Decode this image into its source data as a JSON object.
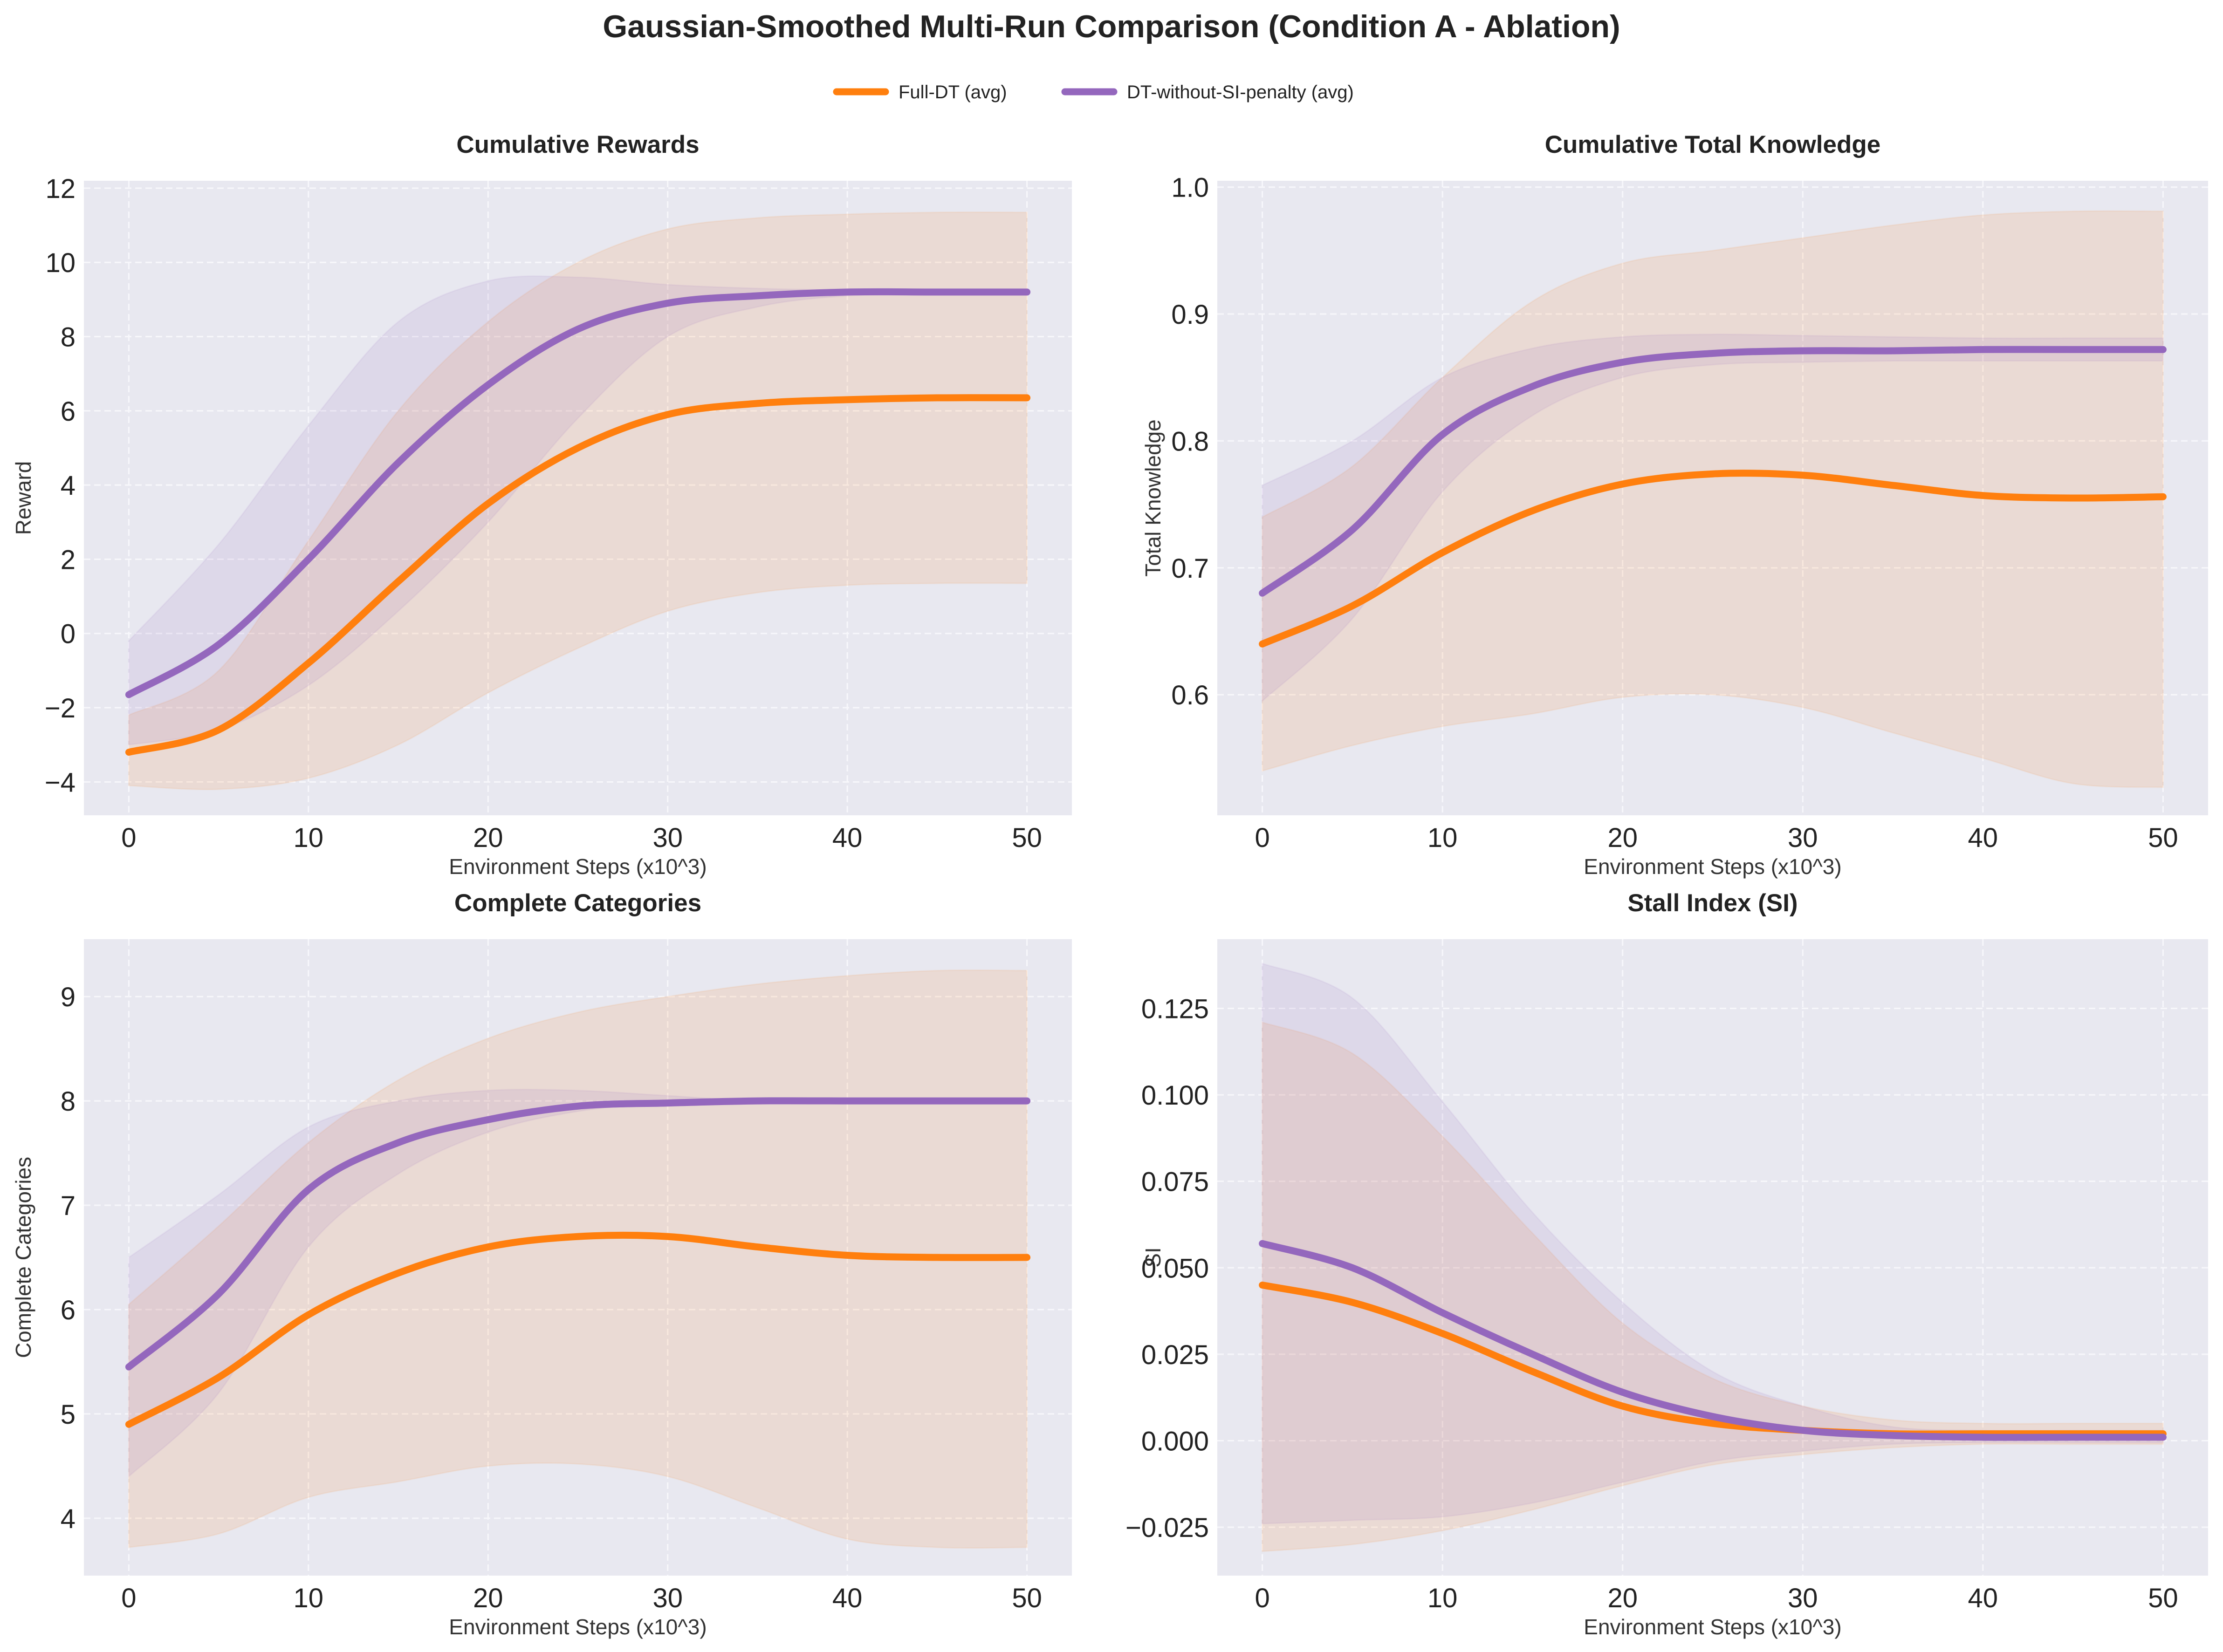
{
  "title": "Gaussian-Smoothed Multi-Run Comparison (Condition A - Ablation)",
  "legend": [
    {
      "label": "Full-DT (avg)",
      "color": "#ff7f0e"
    },
    {
      "label": "DT-without-SI-penalty (avg)",
      "color": "#9467bd"
    }
  ],
  "colors": {
    "panel_bg": "#e8e8f0",
    "grid": "#f7f7fb",
    "full_dt": "#ff7f0e",
    "dt_wo_si": "#9467bd"
  },
  "chart_data": [
    {
      "type": "line",
      "title": "Cumulative Rewards",
      "xlabel": "Environment Steps (x10^3)",
      "ylabel": "Reward",
      "xlim": [
        -2.5,
        52.5
      ],
      "ylim": [
        -4.9,
        12.2
      ],
      "xticks": [
        0,
        10,
        20,
        30,
        40,
        50
      ],
      "xtick_labels": [
        "0",
        "10",
        "20",
        "30",
        "40",
        "50"
      ],
      "yticks": [
        -4,
        -2,
        0,
        2,
        4,
        6,
        8,
        10,
        12
      ],
      "ytick_labels": [
        "−4",
        "−2",
        "0",
        "2",
        "4",
        "6",
        "8",
        "10",
        "12"
      ],
      "x": [
        0,
        5,
        10,
        15,
        20,
        25,
        30,
        35,
        40,
        45,
        50
      ],
      "series": [
        {
          "name": "Full-DT (avg)",
          "values": [
            -3.2,
            -2.6,
            -0.8,
            1.4,
            3.5,
            5.0,
            5.9,
            6.2,
            6.3,
            6.35,
            6.35
          ],
          "lower": [
            -4.1,
            -4.2,
            -3.9,
            -3.0,
            -1.6,
            -0.4,
            0.6,
            1.1,
            1.3,
            1.35,
            1.35
          ],
          "upper": [
            -2.2,
            -1.0,
            2.5,
            6.0,
            8.4,
            10.0,
            10.9,
            11.2,
            11.3,
            11.35,
            11.35
          ]
        },
        {
          "name": "DT-without-SI-penalty (avg)",
          "values": [
            -1.65,
            -0.3,
            2.0,
            4.6,
            6.7,
            8.2,
            8.9,
            9.1,
            9.2,
            9.2,
            9.2
          ],
          "lower": [
            -3.0,
            -2.6,
            -1.4,
            0.6,
            3.0,
            5.8,
            8.0,
            8.8,
            9.1,
            9.15,
            9.2
          ],
          "upper": [
            -0.2,
            2.4,
            5.6,
            8.4,
            9.5,
            9.6,
            9.4,
            9.3,
            9.25,
            9.2,
            9.2
          ]
        }
      ]
    },
    {
      "type": "line",
      "title": "Cumulative Total Knowledge",
      "xlabel": "Environment Steps (x10^3)",
      "ylabel": "Total Knowledge",
      "xlim": [
        -2.5,
        52.5
      ],
      "ylim": [
        0.505,
        1.005
      ],
      "xticks": [
        0,
        10,
        20,
        30,
        40,
        50
      ],
      "xtick_labels": [
        "0",
        "10",
        "20",
        "30",
        "40",
        "50"
      ],
      "yticks": [
        0.6,
        0.7,
        0.8,
        0.9,
        1.0
      ],
      "ytick_labels": [
        "0.6",
        "0.7",
        "0.8",
        "0.9",
        "1.0"
      ],
      "x": [
        0,
        5,
        10,
        15,
        20,
        25,
        30,
        35,
        40,
        45,
        50
      ],
      "series": [
        {
          "name": "Full-DT (avg)",
          "values": [
            0.64,
            0.67,
            0.712,
            0.745,
            0.766,
            0.774,
            0.773,
            0.765,
            0.757,
            0.755,
            0.756
          ],
          "lower": [
            0.54,
            0.56,
            0.575,
            0.585,
            0.598,
            0.6,
            0.59,
            0.57,
            0.55,
            0.53,
            0.527
          ],
          "upper": [
            0.74,
            0.78,
            0.85,
            0.91,
            0.94,
            0.95,
            0.96,
            0.97,
            0.978,
            0.981,
            0.981
          ]
        },
        {
          "name": "DT-without-SI-penalty (avg)",
          "values": [
            0.68,
            0.73,
            0.805,
            0.843,
            0.862,
            0.869,
            0.871,
            0.871,
            0.872,
            0.872,
            0.872
          ],
          "lower": [
            0.595,
            0.66,
            0.76,
            0.82,
            0.85,
            0.86,
            0.862,
            0.863,
            0.863,
            0.863,
            0.863
          ],
          "upper": [
            0.765,
            0.8,
            0.85,
            0.873,
            0.882,
            0.884,
            0.883,
            0.882,
            0.881,
            0.881,
            0.881
          ]
        }
      ]
    },
    {
      "type": "line",
      "title": "Complete Categories",
      "xlabel": "Environment Steps (x10^3)",
      "ylabel": "Complete Categories",
      "xlim": [
        -2.5,
        52.5
      ],
      "ylim": [
        3.45,
        9.55
      ],
      "xticks": [
        0,
        10,
        20,
        30,
        40,
        50
      ],
      "xtick_labels": [
        "0",
        "10",
        "20",
        "30",
        "40",
        "50"
      ],
      "yticks": [
        4,
        5,
        6,
        7,
        8,
        9
      ],
      "ytick_labels": [
        "4",
        "5",
        "6",
        "7",
        "8",
        "9"
      ],
      "x": [
        0,
        5,
        10,
        15,
        20,
        25,
        30,
        35,
        40,
        45,
        50
      ],
      "series": [
        {
          "name": "Full-DT (avg)",
          "values": [
            4.9,
            5.35,
            5.95,
            6.35,
            6.6,
            6.7,
            6.7,
            6.6,
            6.52,
            6.5,
            6.5
          ],
          "lower": [
            3.72,
            3.85,
            4.2,
            4.35,
            4.5,
            4.52,
            4.4,
            4.1,
            3.8,
            3.72,
            3.72
          ],
          "upper": [
            6.05,
            6.8,
            7.6,
            8.2,
            8.6,
            8.85,
            9.0,
            9.12,
            9.2,
            9.25,
            9.25
          ]
        },
        {
          "name": "DT-without-SI-penalty (avg)",
          "values": [
            5.45,
            6.15,
            7.15,
            7.6,
            7.82,
            7.95,
            7.98,
            8.0,
            8.0,
            8.0,
            8.0
          ],
          "lower": [
            4.4,
            5.2,
            6.6,
            7.3,
            7.7,
            7.9,
            7.98,
            8.0,
            8.0,
            8.0,
            8.0
          ],
          "upper": [
            6.5,
            7.1,
            7.75,
            8.0,
            8.1,
            8.1,
            8.05,
            8.0,
            8.0,
            8.0,
            8.0
          ]
        }
      ]
    },
    {
      "type": "line",
      "title": "Stall Index (SI)",
      "xlabel": "Environment Steps (x10^3)",
      "ylabel": "SI",
      "xlim": [
        -2.5,
        52.5
      ],
      "ylim": [
        -0.039,
        0.145
      ],
      "xticks": [
        0,
        10,
        20,
        30,
        40,
        50
      ],
      "xtick_labels": [
        "0",
        "10",
        "20",
        "30",
        "40",
        "50"
      ],
      "yticks": [
        -0.025,
        0.0,
        0.025,
        0.05,
        0.075,
        0.1,
        0.125
      ],
      "ytick_labels": [
        "−0.025",
        "0.000",
        "0.025",
        "0.050",
        "0.075",
        "0.100",
        "0.125"
      ],
      "x": [
        0,
        5,
        10,
        15,
        20,
        25,
        30,
        35,
        40,
        45,
        50
      ],
      "series": [
        {
          "name": "Full-DT (avg)",
          "values": [
            0.045,
            0.04,
            0.031,
            0.02,
            0.01,
            0.005,
            0.003,
            0.002,
            0.002,
            0.002,
            0.002
          ],
          "lower": [
            -0.032,
            -0.03,
            -0.026,
            -0.02,
            -0.013,
            -0.007,
            -0.004,
            -0.002,
            -0.001,
            -0.001,
            -0.001
          ],
          "upper": [
            0.121,
            0.112,
            0.088,
            0.06,
            0.034,
            0.018,
            0.01,
            0.006,
            0.005,
            0.005,
            0.005
          ]
        },
        {
          "name": "DT-without-SI-penalty (avg)",
          "values": [
            0.057,
            0.05,
            0.037,
            0.025,
            0.014,
            0.007,
            0.003,
            0.0015,
            0.001,
            0.001,
            0.001
          ],
          "lower": [
            -0.024,
            -0.023,
            -0.022,
            -0.018,
            -0.012,
            -0.006,
            -0.003,
            -0.001,
            -0.0005,
            -0.0005,
            -0.0005
          ],
          "upper": [
            0.138,
            0.128,
            0.098,
            0.066,
            0.04,
            0.02,
            0.01,
            0.004,
            0.003,
            0.003,
            0.003
          ]
        }
      ]
    }
  ]
}
